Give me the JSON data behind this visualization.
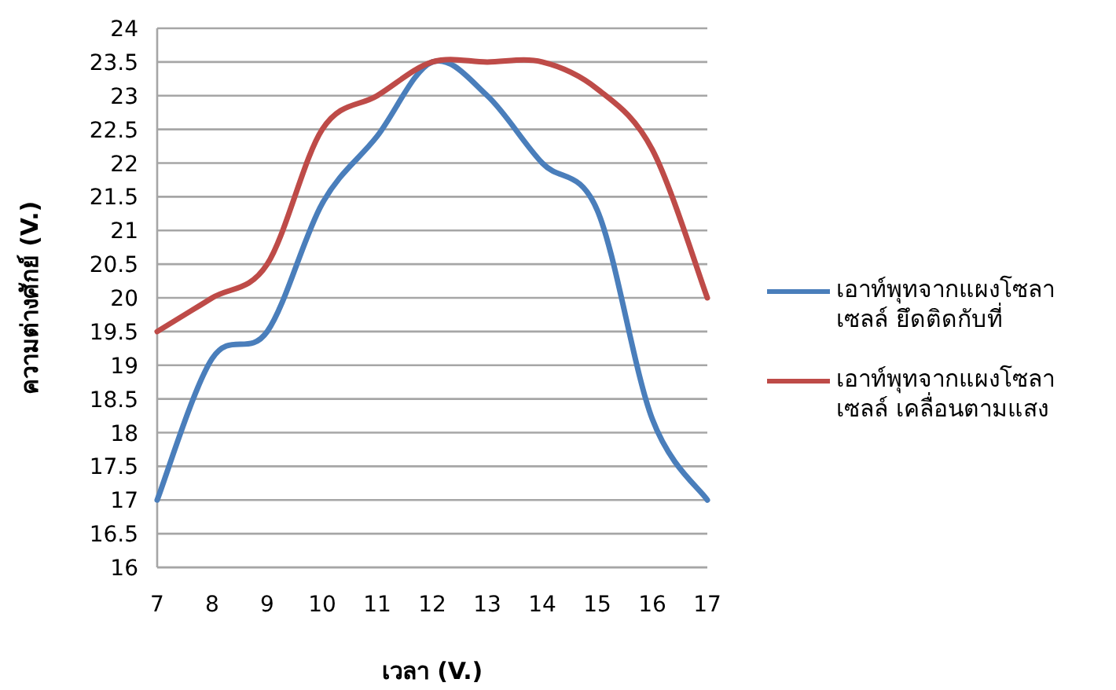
{
  "chart_data": {
    "type": "line",
    "xlabel": "เวลา (V.)",
    "ylabel": "ความต่างศักย์ (V.)",
    "x": [
      7,
      8,
      9,
      10,
      11,
      12,
      13,
      14,
      15,
      16,
      17
    ],
    "series": [
      {
        "name": "เอาท์พุทจากแผงโซลาเซลล์ ยึดติดกับที่",
        "color": "#4a7ebb",
        "values": [
          17,
          19.1,
          19.5,
          21.4,
          22.4,
          23.5,
          23,
          22,
          21.3,
          18.2,
          17
        ]
      },
      {
        "name": "เอาท์พุทจากแผงโซลาเซลล์ เคลื่อนตามแสง",
        "color": "#be4b48",
        "values": [
          19.5,
          20,
          20.5,
          22.5,
          23,
          23.5,
          23.5,
          23.5,
          23.1,
          22.2,
          20
        ]
      }
    ],
    "xlim": [
      7,
      17
    ],
    "xticks": [
      7,
      8,
      9,
      10,
      11,
      12,
      13,
      14,
      15,
      16,
      17
    ],
    "ylim": [
      16,
      24
    ],
    "yticks": [
      16,
      16.5,
      17,
      17.5,
      18,
      18.5,
      19,
      19.5,
      20,
      20.5,
      21,
      21.5,
      22,
      22.5,
      23,
      23.5,
      24
    ],
    "grid": "y",
    "legend": "right",
    "marker": "none",
    "line_style": "solid"
  }
}
